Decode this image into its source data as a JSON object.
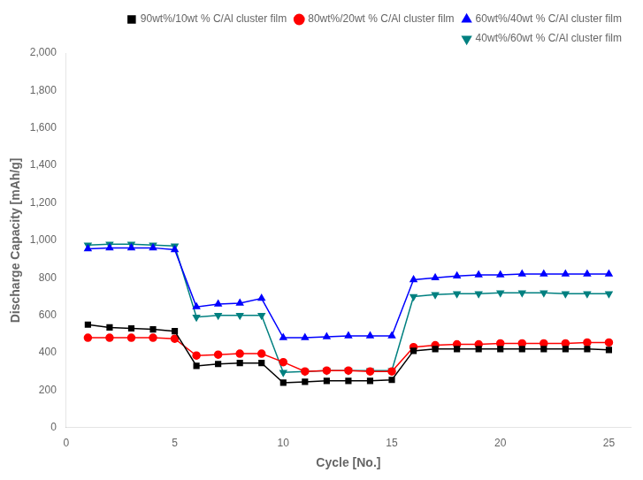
{
  "chart_data": {
    "type": "line",
    "xlabel": "Cycle [No.]",
    "ylabel": "Discharge Capacity [mAh/g]",
    "x": [
      1,
      2,
      3,
      4,
      5,
      6,
      7,
      8,
      9,
      10,
      11,
      12,
      13,
      14,
      15,
      16,
      17,
      18,
      19,
      20,
      21,
      22,
      23,
      24,
      25
    ],
    "series": [
      {
        "name": "90wt%/10wt % C/Al cluster film",
        "color": "#000000",
        "marker": "square",
        "values": [
          550,
          535,
          530,
          525,
          515,
          330,
          340,
          345,
          345,
          240,
          245,
          250,
          250,
          250,
          255,
          410,
          420,
          420,
          420,
          420,
          420,
          420,
          420,
          420,
          415
        ]
      },
      {
        "name": "80wt%/20wt % C/Al cluster film",
        "color": "#ff0000",
        "marker": "circle",
        "values": [
          480,
          480,
          480,
          480,
          475,
          385,
          390,
          395,
          395,
          350,
          300,
          305,
          305,
          300,
          300,
          430,
          440,
          445,
          445,
          450,
          450,
          450,
          450,
          455,
          455
        ]
      },
      {
        "name": "60wt%/40wt % C/Al cluster film",
        "color": "#0000ff",
        "marker": "triangle_up",
        "values": [
          955,
          960,
          960,
          960,
          950,
          645,
          660,
          665,
          690,
          480,
          480,
          485,
          490,
          490,
          490,
          790,
          800,
          810,
          815,
          815,
          820,
          820,
          820,
          820,
          820
        ]
      },
      {
        "name": "40wt%/60wt % C/Al cluster film",
        "color": "#008080",
        "marker": "triangle_down",
        "values": [
          975,
          980,
          980,
          975,
          970,
          590,
          600,
          600,
          600,
          295,
          300,
          305,
          305,
          305,
          305,
          700,
          710,
          715,
          715,
          720,
          720,
          720,
          715,
          715,
          715
        ]
      }
    ],
    "xlim": [
      0,
      26
    ],
    "ylim": [
      0,
      2000
    ],
    "xticks": [
      0,
      5,
      10,
      15,
      20,
      25
    ],
    "yticks": [
      0,
      200,
      400,
      600,
      800,
      1000,
      1200,
      1400,
      1600,
      1800,
      2000
    ],
    "legend": "upper right",
    "grid": false
  }
}
